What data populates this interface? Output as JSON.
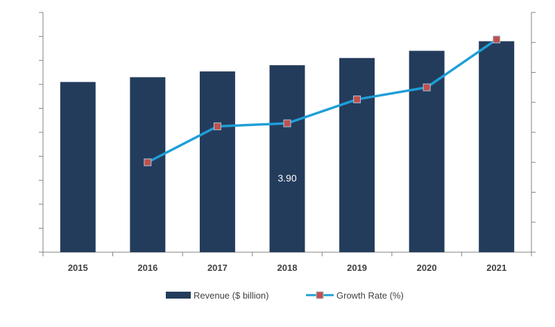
{
  "chart_data": {
    "type": "bar",
    "categories": [
      "2015",
      "2016",
      "2017",
      "2018",
      "2019",
      "2020",
      "2021"
    ],
    "series": [
      {
        "name": "Revenue ($ billion)",
        "type": "bar",
        "axis": "left",
        "values": [
          3.55,
          3.65,
          3.77,
          3.9,
          4.05,
          4.2,
          4.4
        ],
        "color": "#243c5c"
      },
      {
        "name": "Growth Rate (%)",
        "type": "line",
        "axis": "right",
        "values": [
          null,
          1.5,
          2.1,
          2.15,
          2.55,
          2.75,
          3.55
        ],
        "color": "#1e9fd8",
        "marker_color": "#c0504d"
      }
    ],
    "annotations": [
      {
        "category": "2018",
        "text": "3.90"
      }
    ],
    "ylim_left": [
      0,
      5.0
    ],
    "ylim_right": [
      0,
      4.0
    ],
    "left_ticks": 10,
    "right_ticks": 8,
    "legend": {
      "placement": "bottom",
      "items": [
        {
          "label": "Revenue ($ billion)",
          "symbol": "bar"
        },
        {
          "label": "Growth Rate (%)",
          "symbol": "line-marker"
        }
      ]
    }
  }
}
